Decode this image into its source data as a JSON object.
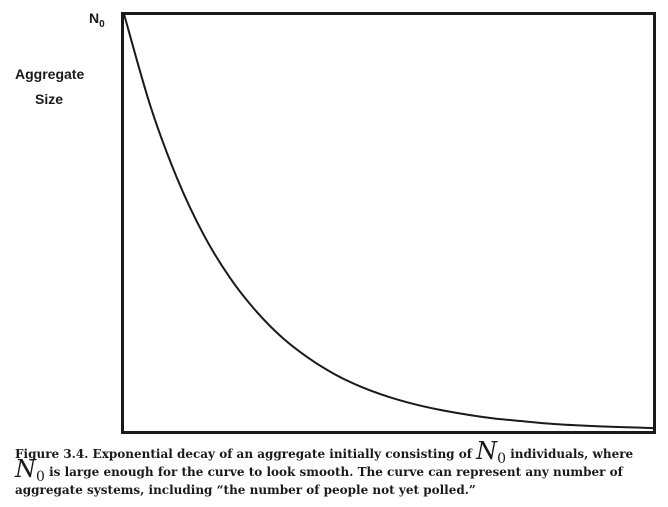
{
  "chart_data": {
    "type": "line",
    "title": "",
    "xlabel": "",
    "ylabel_lines": [
      "Aggregate",
      "Size"
    ],
    "y_tick_label": {
      "main": "N",
      "sub": "0"
    },
    "xlim": [
      0,
      5
    ],
    "ylim": [
      0,
      1
    ],
    "grid": false,
    "legend": "none",
    "series": [
      {
        "name": "exponential decay",
        "x": [
          0,
          0.25,
          0.5,
          0.75,
          1,
          1.25,
          1.5,
          1.75,
          2,
          2.25,
          2.5,
          2.75,
          3,
          3.25,
          3.5,
          3.75,
          4,
          4.25,
          4.5,
          4.75,
          5
        ],
        "values": [
          1.0,
          0.779,
          0.607,
          0.472,
          0.368,
          0.287,
          0.223,
          0.174,
          0.135,
          0.105,
          0.082,
          0.064,
          0.05,
          0.039,
          0.03,
          0.024,
          0.018,
          0.014,
          0.011,
          0.009,
          0.007
        ]
      }
    ]
  },
  "caption": {
    "part1": "Figure 3.4. Exponential decay of an aggregate initially consisting of ",
    "math1_main": "N",
    "math1_sub": "0",
    "part2": " individuals, where ",
    "math2_main": "N",
    "math2_sub": "0",
    "part3": " is large enough for the curve to look smooth. The curve can represent any number of aggregate systems, including “the number of people not yet polled.”"
  }
}
